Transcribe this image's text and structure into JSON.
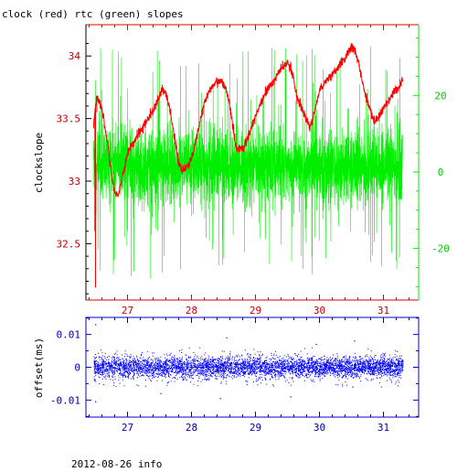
{
  "title": "clock (red) rtc (green) slopes",
  "footer": "2012-08-26 info",
  "colors": {
    "clock": "#ff0000",
    "rtc": "#00ee00",
    "offset": "#0000ff",
    "axis": "#000000"
  },
  "chart_data": [
    {
      "type": "line",
      "title": "clock (red) rtc (green) slopes",
      "xlabel": "",
      "ylabel": "clockslope",
      "y2label": "",
      "xlim": [
        26.35,
        31.55
      ],
      "ylim": [
        32.05,
        34.25
      ],
      "y2lim": [
        -33.5,
        38.5
      ],
      "xticks": [
        27,
        28,
        29,
        30,
        31
      ],
      "yticks": [
        32.5,
        33,
        33.5,
        34
      ],
      "ytick_labels": [
        "32.5",
        "33",
        "33.5",
        "34"
      ],
      "y2ticks": [
        -20,
        0,
        20
      ],
      "y2tick_labels": [
        "-20",
        "0",
        "20"
      ],
      "grid": false,
      "series": [
        {
          "name": "clock",
          "axis": "left",
          "x": [
            26.47,
            26.5,
            26.52,
            26.55,
            26.6,
            26.65,
            26.7,
            26.75,
            26.8,
            26.85,
            26.9,
            26.95,
            27.0,
            27.1,
            27.2,
            27.3,
            27.4,
            27.5,
            27.55,
            27.6,
            27.65,
            27.7,
            27.75,
            27.8,
            27.85,
            27.9,
            27.95,
            28.0,
            28.05,
            28.1,
            28.15,
            28.2,
            28.3,
            28.4,
            28.5,
            28.55,
            28.6,
            28.65,
            28.7,
            28.8,
            28.9,
            29.0,
            29.1,
            29.2,
            29.3,
            29.4,
            29.5,
            29.55,
            29.6,
            29.65,
            29.7,
            29.75,
            29.8,
            29.85,
            29.9,
            29.95,
            30.0,
            30.1,
            30.2,
            30.3,
            30.4,
            30.5,
            30.55,
            30.6,
            30.65,
            30.7,
            30.75,
            30.8,
            30.85,
            30.9,
            31.0,
            31.1,
            31.15,
            31.2,
            31.25,
            31.3
          ],
          "values": [
            33.45,
            33.6,
            33.68,
            33.65,
            33.58,
            33.42,
            33.25,
            33.05,
            32.92,
            32.88,
            32.98,
            33.1,
            33.22,
            33.32,
            33.4,
            33.48,
            33.56,
            33.67,
            33.74,
            33.7,
            33.6,
            33.45,
            33.3,
            33.15,
            33.08,
            33.1,
            33.12,
            33.18,
            33.28,
            33.4,
            33.5,
            33.62,
            33.75,
            33.8,
            33.78,
            33.72,
            33.6,
            33.42,
            33.26,
            33.25,
            33.38,
            33.52,
            33.64,
            33.74,
            33.82,
            33.9,
            33.95,
            33.9,
            33.8,
            33.67,
            33.6,
            33.55,
            33.48,
            33.43,
            33.5,
            33.62,
            33.72,
            33.8,
            33.86,
            33.92,
            33.98,
            34.08,
            34.05,
            33.96,
            33.85,
            33.72,
            33.64,
            33.56,
            33.48,
            33.5,
            33.58,
            33.65,
            33.7,
            33.74,
            33.76,
            33.8
          ],
          "spikes": [
            {
              "x": 26.5,
              "value": 32.15
            },
            {
              "x": 26.49,
              "value": 32.6
            },
            {
              "x": 26.52,
              "value": 33.55
            }
          ]
        },
        {
          "name": "rtc",
          "axis": "right",
          "x_range": [
            26.47,
            31.3
          ],
          "center": 0,
          "band_core": [
            -6,
            9
          ],
          "band_typical": [
            -13,
            13
          ],
          "max": 33,
          "min": -32
        }
      ]
    },
    {
      "type": "scatter",
      "title": "",
      "xlabel": "",
      "ylabel": "offset(ms)",
      "xlim": [
        26.35,
        31.55
      ],
      "ylim": [
        -0.0152,
        0.0152
      ],
      "xticks": [
        27,
        28,
        29,
        30,
        31
      ],
      "yticks": [
        -0.01,
        0,
        0.01
      ],
      "ytick_labels": [
        "-0.01",
        "0",
        "0.01"
      ],
      "grid": false,
      "series": [
        {
          "name": "offset",
          "x_range": [
            26.47,
            31.3
          ],
          "center": 0,
          "band_core": [
            -0.003,
            0.003
          ],
          "outliers": [
            {
              "x": 26.5,
              "value": 0.013
            },
            {
              "x": 26.5,
              "value": -0.0105
            },
            {
              "x": 27.52,
              "value": -0.008
            },
            {
              "x": 28.55,
              "value": 0.009
            },
            {
              "x": 28.45,
              "value": -0.0095
            },
            {
              "x": 29.55,
              "value": -0.009
            },
            {
              "x": 30.55,
              "value": 0.008
            },
            {
              "x": 30.52,
              "value": -0.006
            },
            {
              "x": 29.95,
              "value": 0.007
            }
          ]
        }
      ]
    }
  ]
}
